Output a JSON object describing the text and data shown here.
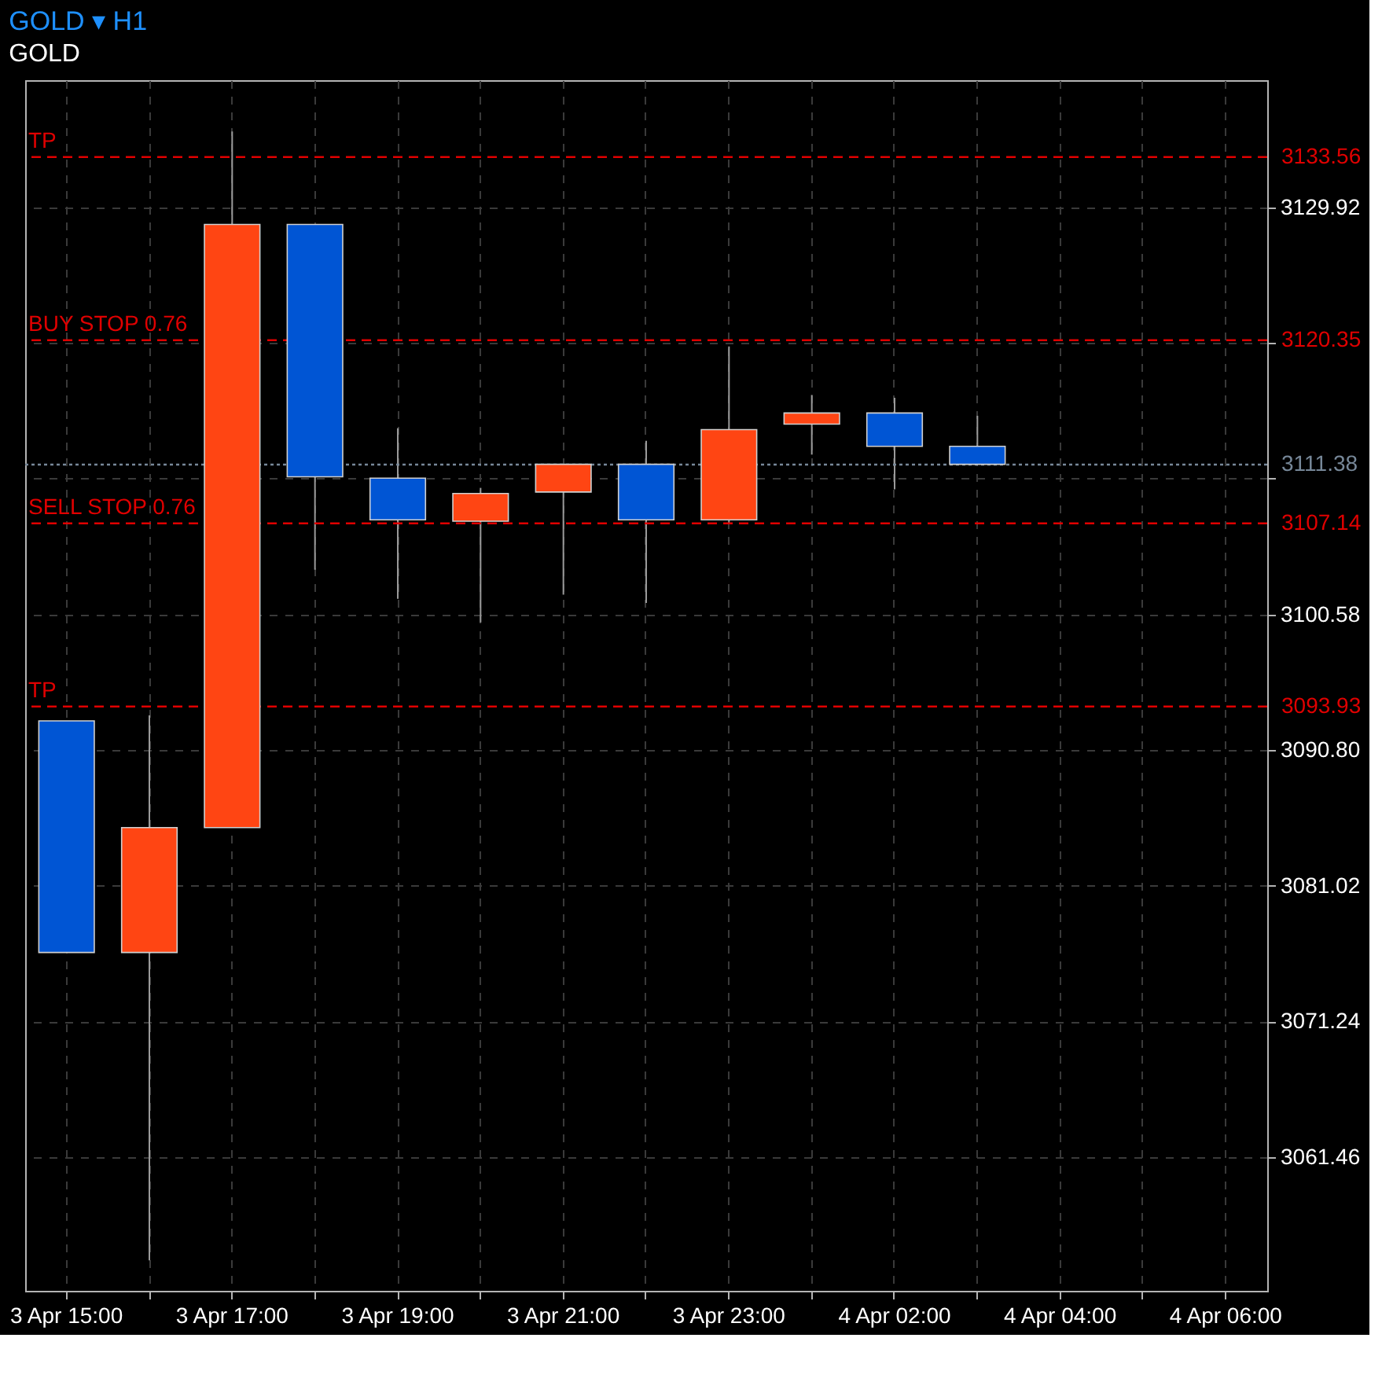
{
  "chart_data": {
    "type": "candlestick",
    "title": "GOLD ▾ H1",
    "subtitle": "GOLD",
    "categories": [
      "3 Apr 15:00",
      null,
      "3 Apr 17:00",
      null,
      "3 Apr 19:00",
      null,
      "3 Apr 21:00",
      null,
      "3 Apr 23:00",
      null,
      "4 Apr 02:00",
      null,
      "4 Apr 04:00",
      null,
      "4 Apr 06:00"
    ],
    "ohlc": [
      [
        3092.9,
        3092.9,
        3076.2,
        3076.2
      ],
      [
        3076.2,
        3093.3,
        3054.0,
        3085.2
      ],
      [
        3085.2,
        3135.4,
        3085.2,
        3128.7
      ],
      [
        3128.7,
        3128.7,
        3103.8,
        3110.5
      ],
      [
        3110.4,
        3114.0,
        3101.7,
        3107.4
      ],
      [
        3107.3,
        3109.7,
        3100.0,
        3109.3
      ],
      [
        3109.4,
        3111.4,
        3102.0,
        3111.4
      ],
      [
        3111.4,
        3113.1,
        3101.4,
        3107.4
      ],
      [
        3107.4,
        3119.9,
        3107.1,
        3113.9
      ],
      [
        3114.3,
        3116.4,
        3112.1,
        3115.1
      ],
      [
        3115.1,
        3116.2,
        3109.6,
        3112.7
      ],
      [
        3112.7,
        3114.9,
        3111.4,
        3111.4
      ],
      null,
      null,
      null
    ],
    "colors": [
      "#0055d4",
      "#ff4513",
      "#ff4513",
      "#0055d4",
      "#0055d4",
      "#ff4513",
      "#ff4513",
      "#0055d4",
      "#ff4513",
      "#ff4513",
      "#0055d4",
      "#0055d4",
      null,
      null,
      null
    ],
    "ylim": [
      3051.8,
      3139.1
    ],
    "yticks": [
      3061.46,
      3071.24,
      3081.02,
      {
        "value": 3090.8,
        "label": "3090.80"
      },
      3100.58,
      {
        "value": 3110.36,
        "label": null
      },
      {
        "value": 3120.14,
        "label": null
      },
      3129.92
    ],
    "grid": true,
    "ref_lines": [
      {
        "axis": "y",
        "value": 3133.56,
        "label": "3133.56",
        "color": "#e00000",
        "line_style": "dashed"
      },
      {
        "axis": "y",
        "value": 3120.35,
        "label": "3120.35",
        "color": "#e00000",
        "line_style": "dashed"
      },
      {
        "axis": "y",
        "value": 3111.38,
        "label": "3111.38",
        "color": "#778899",
        "line_style": "dotted"
      },
      {
        "axis": "y",
        "value": 3107.14,
        "label": "3107.14",
        "color": "#e00000",
        "line_style": "dashed"
      },
      {
        "axis": "y",
        "value": 3093.93,
        "label": "3093.93",
        "color": "#e00000",
        "line_style": "dashed"
      }
    ],
    "annotations": [
      {
        "text": "TP",
        "y": 3133.56
      },
      {
        "text": "BUY STOP 0.76",
        "y": 3120.35
      },
      {
        "text": "SELL STOP 0.76",
        "y": 3107.14
      },
      {
        "text": "TP",
        "y": 3093.93
      }
    ]
  }
}
